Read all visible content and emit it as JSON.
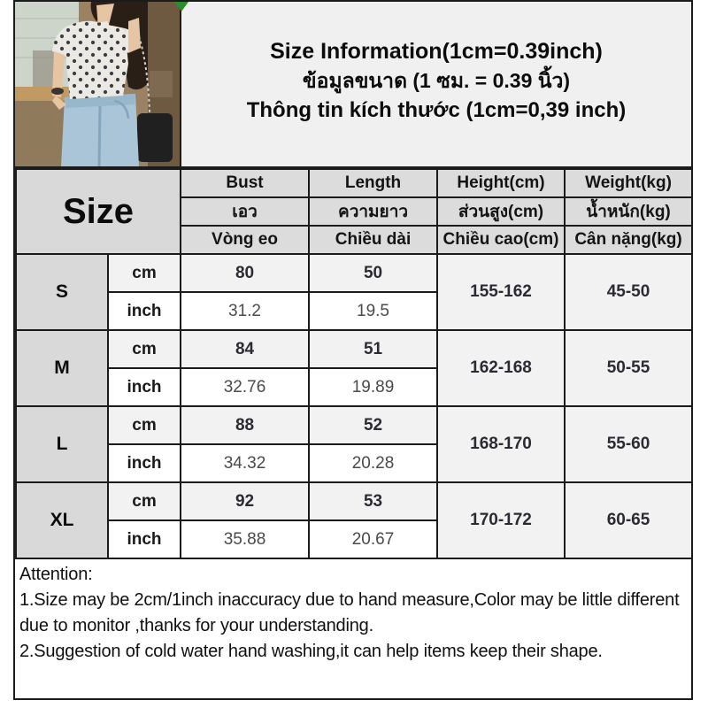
{
  "header": {
    "title_en": "Size Information(1cm=0.39inch)",
    "title_th": "ข้อมูลขนาด (1 ซม. = 0.39 นิ้ว)",
    "title_vi": "Thông tin kích thước (1cm=0,39 inch)"
  },
  "photo": {
    "description": "model wearing polka-dot short-sleeve top and blue jeans in a shop"
  },
  "table": {
    "size_label": "Size",
    "unit_labels": [
      "cm",
      "inch"
    ],
    "columns": [
      {
        "en": "Bust",
        "th": "เอว",
        "vi": "Vòng eo"
      },
      {
        "en": "Length",
        "th": "ความยาว",
        "vi": "Chiều dài"
      },
      {
        "en": "Height(cm)",
        "th": "ส่วนสูง(cm)",
        "vi": "Chiều cao(cm)"
      },
      {
        "en": "Weight(kg)",
        "th": "น้ำหนัก(kg)",
        "vi": "Cân nặng(kg)"
      }
    ],
    "rows": [
      {
        "size": "S",
        "cm": [
          "80",
          "50"
        ],
        "inch": [
          "31.2",
          "19.5"
        ],
        "height": "155-162",
        "weight": "45-50"
      },
      {
        "size": "M",
        "cm": [
          "84",
          "51"
        ],
        "inch": [
          "32.76",
          "19.89"
        ],
        "height": "162-168",
        "weight": "50-55"
      },
      {
        "size": "L",
        "cm": [
          "88",
          "52"
        ],
        "inch": [
          "34.32",
          "20.28"
        ],
        "height": "168-170",
        "weight": "55-60"
      },
      {
        "size": "XL",
        "cm": [
          "92",
          "53"
        ],
        "inch": [
          "35.88",
          "20.67"
        ],
        "height": "170-172",
        "weight": "60-65"
      }
    ]
  },
  "attention": {
    "label": "Attention:",
    "lines": [
      "1.Size may be 2cm/1inch inaccuracy due to hand measure,Color may be little different due to monitor ,thanks for your understanding.",
      "2.Suggestion of cold water hand washing,it can help items keep their shape."
    ]
  },
  "colors": {
    "frame_border": "#1b1b1b",
    "title_background": "#f0f0f0",
    "header_cell_gray": "#dcdcdc",
    "size_cell_gray": "#d9d9d9",
    "cm_row_gray": "#f2f2f2",
    "corner_marker_green": "#2a8f2a"
  }
}
